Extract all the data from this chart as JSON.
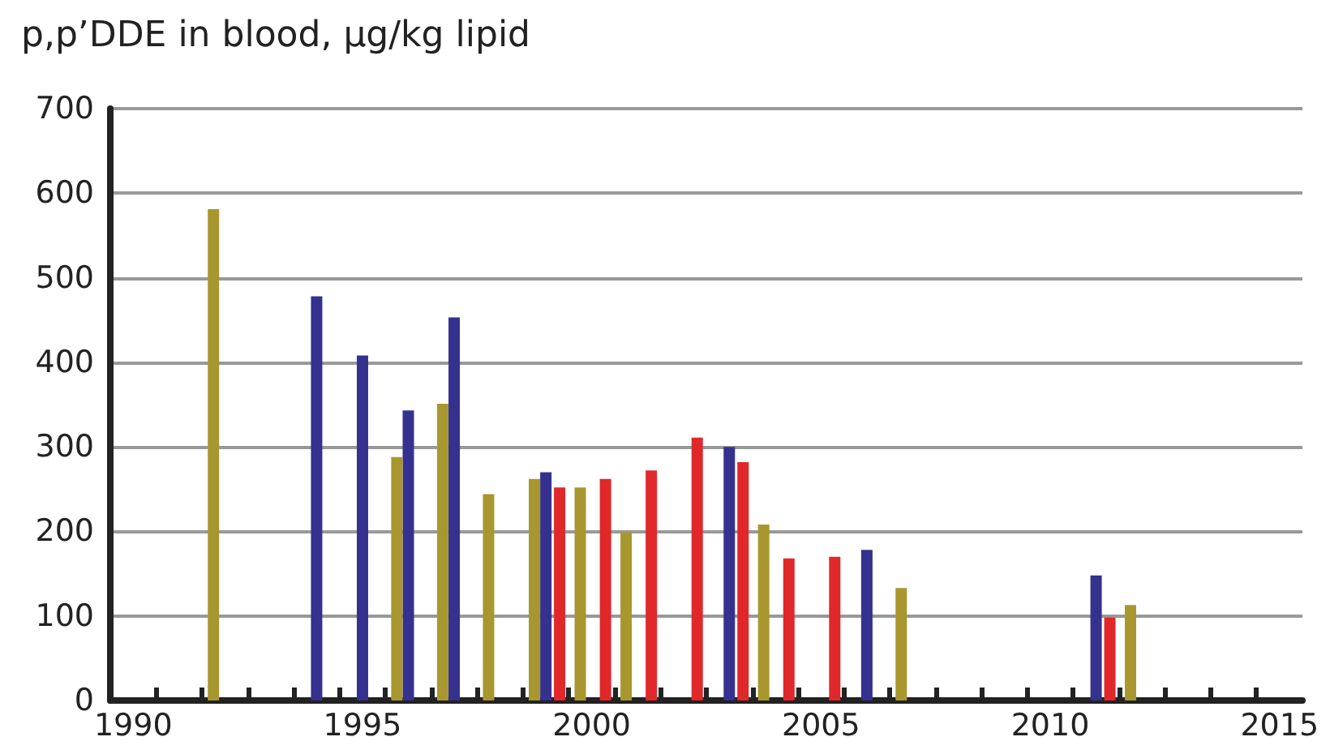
{
  "chart_data": {
    "type": "bar",
    "title": "p,p’DDE in blood, µg/kg lipid",
    "series": [
      {
        "color": "#35318e",
        "x": [
          1994,
          1995,
          1996,
          1997,
          1999,
          2003,
          2006,
          2011
        ],
        "values": [
          478,
          408,
          343,
          453,
          270,
          300,
          178,
          148
        ]
      },
      {
        "color": "#e0282a",
        "x": [
          1999.3,
          2000.3,
          2001.3,
          2002.3,
          2003.3,
          2004.3,
          2005.3,
          2011.3
        ],
        "values": [
          252,
          262,
          272,
          311,
          282,
          168,
          170,
          98
        ]
      },
      {
        "color": "#a8972f",
        "x": [
          1991.75,
          1995.75,
          1996.75,
          1997.75,
          1998.75,
          1999.75,
          2000.75,
          2003.75,
          2006.75,
          2011.75
        ],
        "values": [
          581,
          288,
          351,
          244,
          262,
          252,
          199,
          208,
          133,
          113
        ]
      }
    ],
    "xlim": [
      1989.5,
      2015.5
    ],
    "xticks": [
      1990,
      1995,
      2000,
      2005,
      2010,
      2015,
      {
        "value": 1990.5,
        "label": null
      },
      {
        "value": 1991.5,
        "label": null
      },
      {
        "value": 1992.5,
        "label": null
      },
      {
        "value": 1993.5,
        "label": null
      },
      {
        "value": 1994.5,
        "label": null
      },
      {
        "value": 1995.5,
        "label": null
      },
      {
        "value": 1996.5,
        "label": null
      },
      {
        "value": 1997.5,
        "label": null
      },
      {
        "value": 1998.5,
        "label": null
      },
      {
        "value": 1999.5,
        "label": null
      },
      {
        "value": 2000.5,
        "label": null
      },
      {
        "value": 2001.5,
        "label": null
      },
      {
        "value": 2002.5,
        "label": null
      },
      {
        "value": 2003.5,
        "label": null
      },
      {
        "value": 2004.5,
        "label": null
      },
      {
        "value": 2005.5,
        "label": null
      },
      {
        "value": 2006.5,
        "label": null
      },
      {
        "value": 2007.5,
        "label": null
      },
      {
        "value": 2008.5,
        "label": null
      },
      {
        "value": 2009.5,
        "label": null
      },
      {
        "value": 2010.5,
        "label": null
      },
      {
        "value": 2011.5,
        "label": null
      },
      {
        "value": 2012.5,
        "label": null
      },
      {
        "value": 2013.5,
        "label": null
      },
      {
        "value": 2014.5,
        "label": null
      }
    ],
    "ylim": [
      0,
      700
    ],
    "yticks": [
      0,
      100,
      200,
      300,
      400,
      500,
      600,
      700
    ],
    "grid": "y"
  }
}
